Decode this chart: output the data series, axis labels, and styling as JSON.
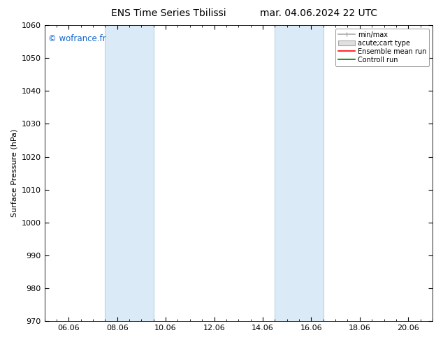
{
  "title_left": "ENS Time Series Tbilissi",
  "title_right": "mar. 04.06.2024 22 UTC",
  "ylabel": "Surface Pressure (hPa)",
  "ylim": [
    970,
    1060
  ],
  "yticks": [
    970,
    980,
    990,
    1000,
    1010,
    1020,
    1030,
    1040,
    1050,
    1060
  ],
  "xlim": [
    0,
    16
  ],
  "xtick_labels": [
    "06.06",
    "08.06",
    "10.06",
    "12.06",
    "14.06",
    "16.06",
    "18.06",
    "20.06"
  ],
  "xtick_positions": [
    1,
    3,
    5,
    7,
    9,
    11,
    13,
    15
  ],
  "shaded_bands": [
    {
      "x_start": 2.5,
      "x_end": 4.5,
      "color": "#daeaf7"
    },
    {
      "x_start": 9.5,
      "x_end": 11.5,
      "color": "#daeaf7"
    }
  ],
  "watermark": "© wofrance.fr",
  "watermark_color": "#1166cc",
  "bg_color": "#ffffff",
  "plot_bg_color": "#ffffff",
  "title_fontsize": 10,
  "label_fontsize": 8,
  "tick_fontsize": 8
}
